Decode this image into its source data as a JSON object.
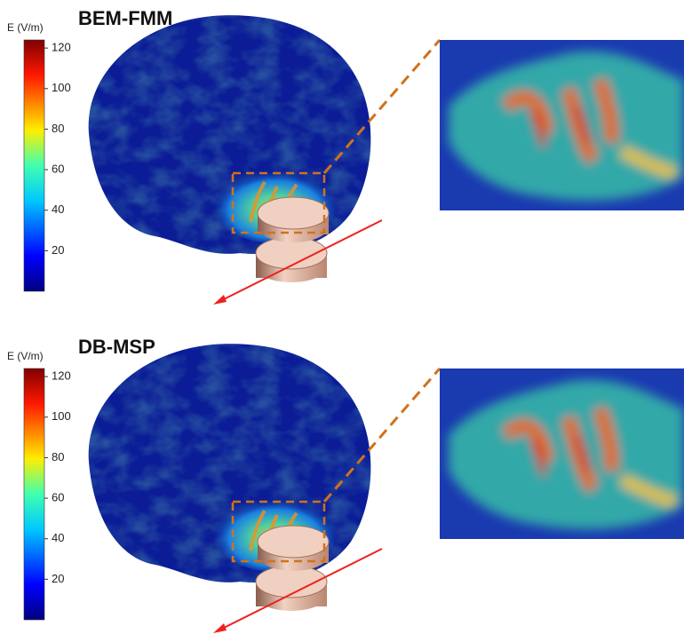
{
  "panels": [
    {
      "title": "BEM-FMM",
      "colorbar": {
        "label": "E (V/m)",
        "lim": [
          0,
          124
        ],
        "ticks": [
          20,
          40,
          60,
          80,
          100,
          120
        ]
      }
    },
    {
      "title": "DB-MSP",
      "colorbar": {
        "label": "E (V/m)",
        "lim": [
          0,
          124
        ],
        "ticks": [
          20,
          40,
          60,
          80,
          100,
          120
        ]
      }
    }
  ]
}
